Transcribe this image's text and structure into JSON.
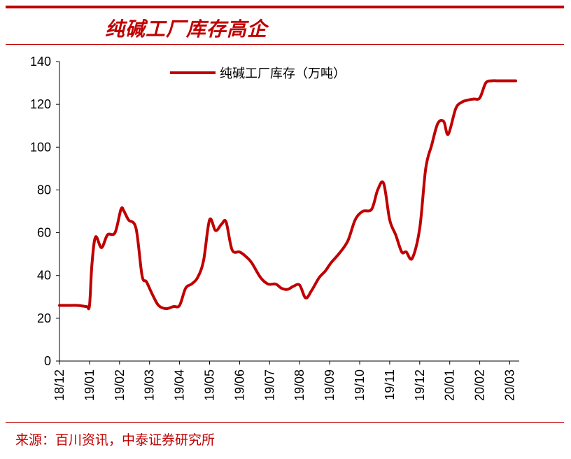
{
  "header": {
    "title": "纯碱工厂库存高企"
  },
  "footer": {
    "source": "来源：百川资讯，中泰证券研究所"
  },
  "chart_data": {
    "type": "line",
    "title": "纯碱工厂库存高企",
    "xlabel": "",
    "ylabel": "",
    "ylim": [
      0,
      140
    ],
    "yticks": [
      0,
      20,
      40,
      60,
      80,
      100,
      120,
      140
    ],
    "categories": [
      "18/12",
      "19/01",
      "19/02",
      "19/03",
      "19/04",
      "19/05",
      "19/06",
      "19/07",
      "19/08",
      "19/09",
      "19/10",
      "19/11",
      "19/12",
      "20/01",
      "20/02",
      "20/03"
    ],
    "legend": {
      "label": "纯碱工厂库存（万吨）",
      "position": "top-right"
    },
    "color": "#c00000",
    "series": [
      {
        "name": "纯碱工厂库存（万吨）",
        "x": [
          0,
          0.25,
          0.6,
          0.9,
          1.0,
          1.08,
          1.2,
          1.4,
          1.6,
          1.85,
          2.05,
          2.15,
          2.3,
          2.55,
          2.75,
          2.9,
          3.1,
          3.3,
          3.55,
          3.8,
          4.0,
          4.2,
          4.4,
          4.6,
          4.8,
          5.0,
          5.2,
          5.4,
          5.55,
          5.75,
          6.0,
          6.2,
          6.4,
          6.7,
          6.95,
          7.2,
          7.4,
          7.6,
          7.8,
          8.0,
          8.2,
          8.4,
          8.65,
          8.85,
          9.05,
          9.3,
          9.6,
          9.85,
          10.1,
          10.4,
          10.6,
          10.8,
          11.0,
          11.2,
          11.4,
          11.55,
          11.75,
          12.0,
          12.2,
          12.4,
          12.6,
          12.8,
          12.95,
          13.2,
          13.4,
          13.6,
          13.8,
          14.0,
          14.2,
          14.4,
          14.6,
          14.9,
          15.1,
          15.2
        ],
        "values": [
          26,
          26,
          26,
          25.5,
          26,
          45,
          58,
          53,
          59,
          60,
          71,
          70,
          66,
          62,
          40,
          37,
          31,
          26,
          24.5,
          25.5,
          26,
          34,
          36,
          39,
          47,
          66,
          61,
          64,
          65,
          52,
          51,
          49,
          46,
          39,
          36,
          36,
          34,
          33.5,
          35,
          35.5,
          29.5,
          33,
          39,
          42,
          46,
          50,
          56,
          66,
          70,
          71,
          80,
          83,
          66,
          59,
          51,
          51,
          48,
          62,
          90,
          101,
          111,
          112,
          106,
          118,
          121,
          122,
          122.5,
          123,
          130,
          131,
          131,
          131,
          131,
          131
        ]
      }
    ]
  }
}
